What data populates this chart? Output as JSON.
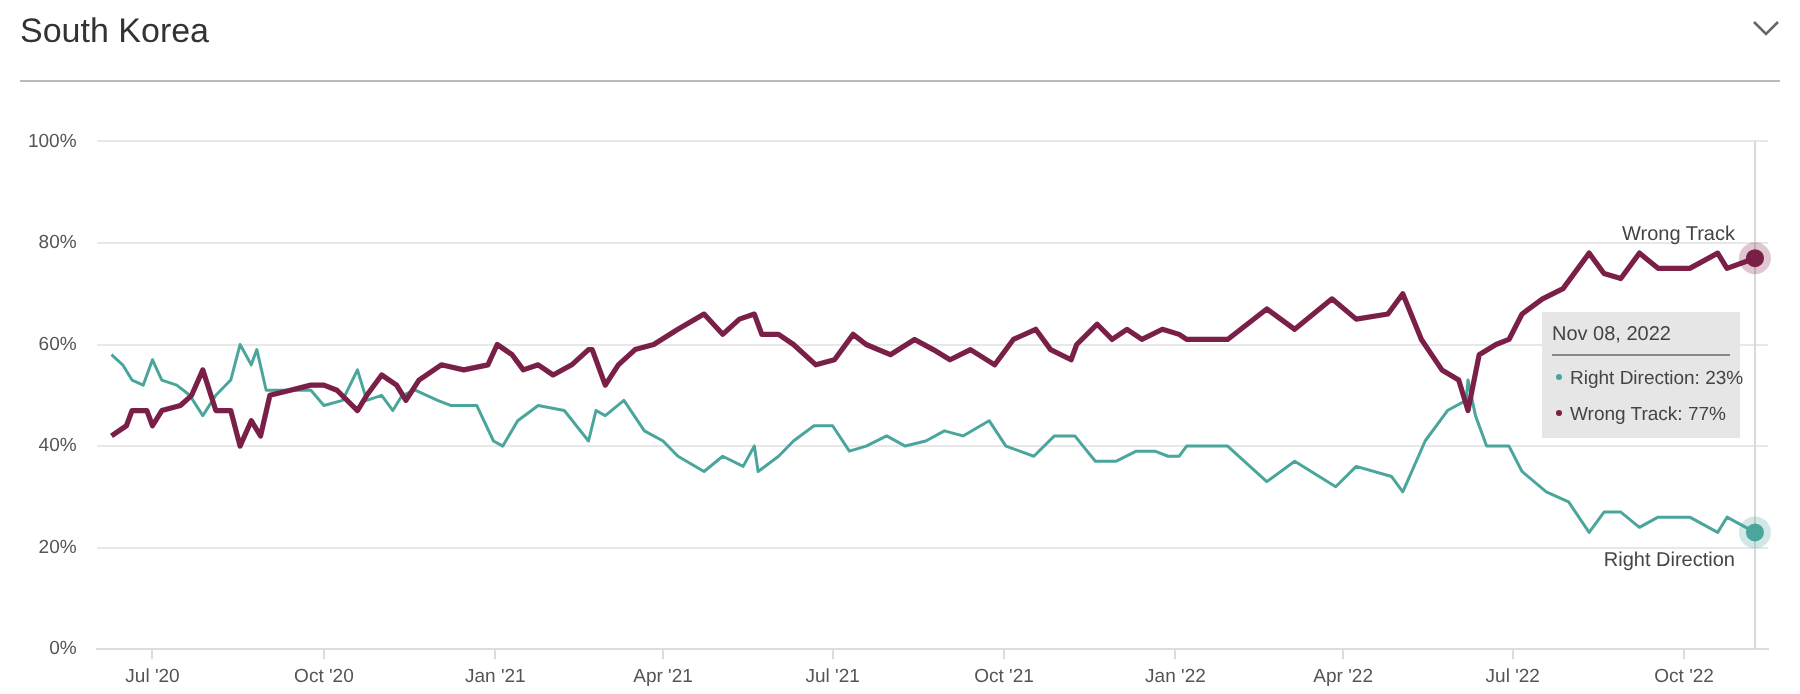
{
  "chart_data": {
    "type": "line",
    "title": "South Korea",
    "xlim": [
      "2020-06-01",
      "2022-11-15"
    ],
    "xticks": [
      {
        "value": "2020-07-01",
        "label": "Jul '20"
      },
      {
        "value": "2020-10-01",
        "label": "Oct '20"
      },
      {
        "value": "2021-01-01",
        "label": "Jan '21"
      },
      {
        "value": "2021-04-01",
        "label": "Apr '21"
      },
      {
        "value": "2021-07-01",
        "label": "Jul '21"
      },
      {
        "value": "2021-10-01",
        "label": "Oct '21"
      },
      {
        "value": "2022-01-01",
        "label": "Jan '22"
      },
      {
        "value": "2022-04-01",
        "label": "Apr '22"
      },
      {
        "value": "2022-07-01",
        "label": "Jul '22"
      },
      {
        "value": "2022-10-01",
        "label": "Oct '22"
      }
    ],
    "ylim": [
      0,
      100
    ],
    "yticks": [
      {
        "value": 0,
        "label": "0%"
      },
      {
        "value": 20,
        "label": "20%"
      },
      {
        "value": 40,
        "label": "40%"
      },
      {
        "value": 60,
        "label": "60%"
      },
      {
        "value": 80,
        "label": "80%"
      },
      {
        "value": 100,
        "label": "100%"
      }
    ],
    "grid": "y",
    "legend": false,
    "marker": "none",
    "line_style": "solid",
    "ref_lines": [
      {
        "axis": "x",
        "value": "2022-11-08",
        "color": "#d9d9d9"
      }
    ],
    "annotations": [
      "Nov 08, 2022",
      "Right Direction: 23%",
      "Wrong Track: 77%"
    ],
    "series": [
      {
        "name": "Wrong Track",
        "color": "#7a1f47",
        "x": [
          "2020-06-09",
          "2020-06-17",
          "2020-06-20",
          "2020-06-28",
          "2020-07-01",
          "2020-07-06",
          "2020-07-16",
          "2020-07-22",
          "2020-07-28",
          "2020-08-04",
          "2020-08-12",
          "2020-08-17",
          "2020-08-23",
          "2020-08-28",
          "2020-09-02",
          "2020-09-13",
          "2020-09-24",
          "2020-10-01",
          "2020-10-08",
          "2020-10-19",
          "2020-10-24",
          "2020-11-01",
          "2020-11-09",
          "2020-11-14",
          "2020-11-21",
          "2020-12-03",
          "2020-12-15",
          "2020-12-28",
          "2021-01-02",
          "2021-01-10",
          "2021-01-16",
          "2021-01-24",
          "2021-02-01",
          "2021-02-11",
          "2021-02-20",
          "2021-02-22",
          "2021-03-01",
          "2021-03-08",
          "2021-03-17",
          "2021-03-27",
          "2021-04-09",
          "2021-04-23",
          "2021-05-03",
          "2021-05-12",
          "2021-05-20",
          "2021-05-24",
          "2021-06-02",
          "2021-06-10",
          "2021-06-22",
          "2021-07-02",
          "2021-07-12",
          "2021-07-19",
          "2021-08-01",
          "2021-08-14",
          "2021-08-24",
          "2021-09-02",
          "2021-09-13",
          "2021-09-26",
          "2021-10-06",
          "2021-10-18",
          "2021-10-26",
          "2021-11-06",
          "2021-11-09",
          "2021-11-20",
          "2021-11-28",
          "2021-12-06",
          "2021-12-14",
          "2021-12-25",
          "2022-01-03",
          "2022-01-07",
          "2022-01-29",
          "2022-02-19",
          "2022-03-06",
          "2022-03-26",
          "2022-04-08",
          "2022-04-25",
          "2022-05-03",
          "2022-05-13",
          "2022-05-24",
          "2022-06-02",
          "2022-06-07",
          "2022-06-13",
          "2022-06-22",
          "2022-06-29",
          "2022-07-06",
          "2022-07-17",
          "2022-07-28",
          "2022-08-11",
          "2022-08-19",
          "2022-08-28",
          "2022-09-07",
          "2022-09-17",
          "2022-10-04",
          "2022-10-19",
          "2022-10-24",
          "2022-11-08"
        ],
        "values": [
          42,
          44,
          47,
          47,
          44,
          47,
          48,
          50,
          55,
          47,
          47,
          40,
          45,
          42,
          50,
          51,
          52,
          52,
          51,
          47,
          50,
          54,
          52,
          49,
          53,
          56,
          55,
          56,
          60,
          58,
          55,
          56,
          54,
          56,
          59,
          59,
          52,
          56,
          59,
          60,
          63,
          66,
          62,
          65,
          66,
          62,
          62,
          60,
          56,
          57,
          62,
          60,
          58,
          61,
          59,
          57,
          59,
          56,
          61,
          63,
          59,
          57,
          60,
          64,
          61,
          63,
          61,
          63,
          62,
          61,
          61,
          67,
          63,
          69,
          65,
          66,
          70,
          61,
          55,
          53,
          47,
          58,
          60,
          61,
          66,
          69,
          71,
          78,
          74,
          73,
          78,
          75,
          75,
          78,
          75,
          77
        ]
      },
      {
        "name": "Right Direction",
        "color": "#4aa59c",
        "x": [
          "2020-06-09",
          "2020-06-15",
          "2020-06-20",
          "2020-06-26",
          "2020-07-01",
          "2020-07-06",
          "2020-07-14",
          "2020-07-21",
          "2020-07-28",
          "2020-08-04",
          "2020-08-12",
          "2020-08-17",
          "2020-08-23",
          "2020-08-26",
          "2020-08-31",
          "2020-09-09",
          "2020-09-24",
          "2020-10-01",
          "2020-10-11",
          "2020-10-19",
          "2020-10-24",
          "2020-11-01",
          "2020-11-07",
          "2020-11-12",
          "2020-11-19",
          "2020-12-01",
          "2020-12-08",
          "2020-12-22",
          "2020-12-31",
          "2021-01-05",
          "2021-01-13",
          "2021-01-24",
          "2021-02-07",
          "2021-02-20",
          "2021-02-24",
          "2021-03-01",
          "2021-03-11",
          "2021-03-22",
          "2021-04-01",
          "2021-04-09",
          "2021-04-23",
          "2021-05-03",
          "2021-05-14",
          "2021-05-20",
          "2021-05-22",
          "2021-06-02",
          "2021-06-10",
          "2021-06-21",
          "2021-07-01",
          "2021-07-10",
          "2021-07-19",
          "2021-07-30",
          "2021-08-09",
          "2021-08-20",
          "2021-08-30",
          "2021-09-09",
          "2021-09-23",
          "2021-10-02",
          "2021-10-17",
          "2021-10-28",
          "2021-11-08",
          "2021-11-19",
          "2021-11-30",
          "2021-12-11",
          "2021-12-21",
          "2021-12-28",
          "2022-01-03",
          "2022-01-07",
          "2022-01-29",
          "2022-02-19",
          "2022-03-06",
          "2022-03-28",
          "2022-04-08",
          "2022-04-27",
          "2022-05-03",
          "2022-05-15",
          "2022-05-27",
          "2022-06-06",
          "2022-06-07",
          "2022-06-11",
          "2022-06-17",
          "2022-06-29",
          "2022-07-06",
          "2022-07-19",
          "2022-07-31",
          "2022-08-11",
          "2022-08-19",
          "2022-08-28",
          "2022-09-07",
          "2022-09-17",
          "2022-10-04",
          "2022-10-19",
          "2022-10-24",
          "2022-11-08"
        ],
        "values": [
          58,
          56,
          53,
          52,
          57,
          53,
          52,
          50,
          46,
          50,
          53,
          60,
          56,
          59,
          51,
          51,
          51,
          48,
          49,
          55,
          49,
          50,
          47,
          50,
          51,
          49,
          48,
          48,
          41,
          40,
          45,
          48,
          47,
          41,
          47,
          46,
          49,
          43,
          41,
          38,
          35,
          38,
          36,
          40,
          35,
          38,
          41,
          44,
          44,
          39,
          40,
          42,
          40,
          41,
          43,
          42,
          45,
          40,
          38,
          42,
          42,
          37,
          37,
          39,
          39,
          38,
          38,
          40,
          40,
          33,
          37,
          32,
          36,
          34,
          31,
          41,
          47,
          49,
          53,
          46,
          40,
          40,
          35,
          31,
          29,
          23,
          27,
          27,
          24,
          26,
          26,
          23,
          26,
          23
        ]
      }
    ]
  }
}
